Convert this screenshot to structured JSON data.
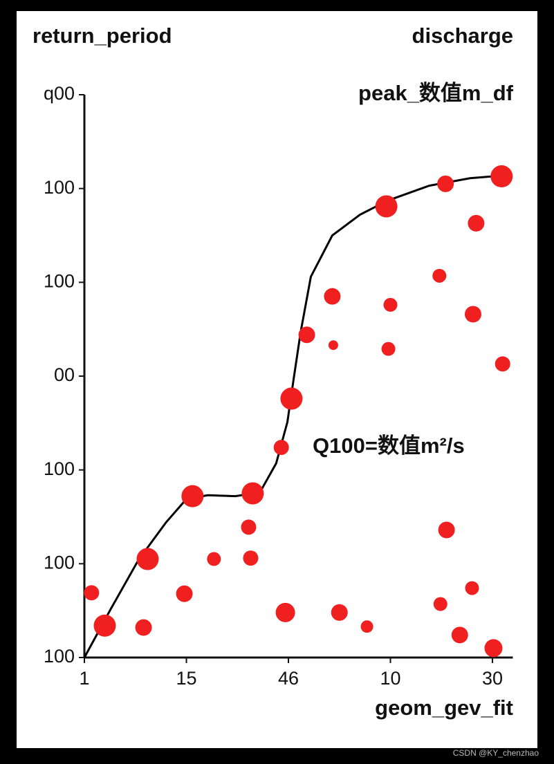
{
  "chart_data": {
    "type": "scatter",
    "ylabel": "return_period",
    "title": "discharge",
    "subtitle": "peak_数值m_df",
    "annotation": "Q100=数值m²/s",
    "watermark": "CSDN @KY_chenzhao",
    "color": "#f02020",
    "line_color": "#000000",
    "xlim": [
      0,
      4.2
    ],
    "ylim": [
      0,
      6
    ],
    "xticks": [
      {
        "value": 0,
        "label": "1"
      },
      {
        "value": 1,
        "label": "15"
      },
      {
        "value": 2,
        "label": "46"
      },
      {
        "value": 3,
        "label": "10"
      },
      {
        "value": 4,
        "label": "30"
      }
    ],
    "yticks": [
      {
        "value": 0,
        "label": "100"
      },
      {
        "value": 1,
        "label": "100"
      },
      {
        "value": 2,
        "label": "100"
      },
      {
        "value": 3,
        "label": "00"
      },
      {
        "value": 4,
        "label": "100"
      },
      {
        "value": 5,
        "label": "100"
      },
      {
        "value": 6,
        "label": "q00"
      }
    ],
    "points": {
      "x": [
        0.07,
        0.2,
        0.62,
        0.58,
        0.98,
        1.06,
        1.27,
        1.61,
        1.63,
        1.65,
        1.93,
        2.03,
        1.97,
        2.18,
        2.43,
        2.44,
        2.5,
        2.77,
        2.96,
        3.0,
        2.98,
        3.48,
        3.54,
        3.55,
        3.49,
        3.68,
        3.81,
        3.84,
        3.8,
        4.1,
        4.09,
        4.01
      ],
      "values": [
        0.69,
        0.34,
        1.05,
        0.32,
        0.68,
        1.72,
        1.05,
        1.39,
        1.06,
        1.75,
        2.24,
        2.76,
        0.48,
        3.44,
        3.85,
        3.33,
        0.48,
        0.33,
        4.81,
        3.76,
        3.29,
        4.07,
        5.05,
        1.36,
        0.57,
        0.24,
        3.66,
        4.63,
        0.74,
        3.13,
        5.13,
        0.1
      ],
      "sizes": [
        11,
        16,
        16,
        12,
        12,
        16,
        10,
        11,
        11,
        16,
        11,
        16,
        14,
        12,
        12,
        7,
        12,
        9,
        16,
        10,
        10,
        10,
        12,
        12,
        10,
        12,
        12,
        12,
        10,
        11,
        16,
        13
      ]
    },
    "fit": {
      "name": "geom_gev_fit",
      "x": [
        0.0,
        0.26,
        0.53,
        0.8,
        1.0,
        1.21,
        1.48,
        1.72,
        1.88,
        1.99,
        2.05,
        2.12,
        2.22,
        2.43,
        2.7,
        2.97,
        3.38,
        3.78,
        4.12
      ],
      "values": [
        0.0,
        0.52,
        1.04,
        1.44,
        1.69,
        1.73,
        1.72,
        1.76,
        2.07,
        2.51,
        2.96,
        3.47,
        4.06,
        4.5,
        4.72,
        4.87,
        5.03,
        5.11,
        5.14
      ]
    }
  }
}
